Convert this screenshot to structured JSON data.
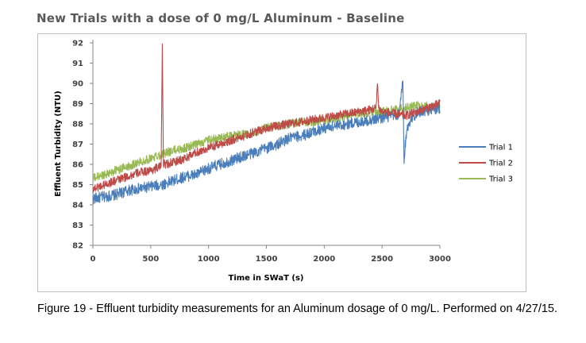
{
  "figure": {
    "caption": "Figure 19 - Effluent turbidity measurements for an Aluminum dosage of 0 mg/L. Performed on 4/27/15."
  },
  "chart_data": {
    "type": "line",
    "title": "New Trials with a dose of 0 mg/L Aluminum - Baseline",
    "xlabel": "Time in SWaT (s)",
    "ylabel": "Effluent Turbidity (NTU)",
    "xlim": [
      0,
      3000
    ],
    "ylim": [
      82,
      92
    ],
    "xticks": [
      0,
      500,
      1000,
      1500,
      2000,
      2500,
      3000
    ],
    "yticks": [
      82,
      83,
      84,
      85,
      86,
      87,
      88,
      89,
      90,
      91,
      92
    ],
    "grid": false,
    "legend_position": "right",
    "series": [
      {
        "name": "Trial 1",
        "color": "#4a7ebb",
        "x": [
          0,
          100,
          200,
          300,
          400,
          500,
          600,
          700,
          800,
          900,
          1000,
          1100,
          1200,
          1300,
          1400,
          1500,
          1600,
          1700,
          1800,
          1900,
          2000,
          2100,
          2200,
          2300,
          2400,
          2500,
          2600,
          2650,
          2680,
          2690,
          2700,
          2720,
          2750,
          2800,
          2900,
          3000
        ],
        "values": [
          84.3,
          84.4,
          84.5,
          84.7,
          84.8,
          84.9,
          85.0,
          85.2,
          85.4,
          85.5,
          85.8,
          86.0,
          86.2,
          86.4,
          86.6,
          86.8,
          87.0,
          87.3,
          87.4,
          87.6,
          87.8,
          87.9,
          88.0,
          88.1,
          88.2,
          88.3,
          88.4,
          88.5,
          90.2,
          86.0,
          87.0,
          87.8,
          88.3,
          88.5,
          88.7,
          88.8
        ]
      },
      {
        "name": "Trial 2",
        "color": "#be4b48",
        "x": [
          0,
          100,
          200,
          300,
          400,
          500,
          590,
          600,
          610,
          700,
          800,
          900,
          1000,
          1100,
          1200,
          1300,
          1400,
          1500,
          1600,
          1700,
          1800,
          1900,
          2000,
          2100,
          2200,
          2300,
          2400,
          2450,
          2460,
          2470,
          2500,
          2600,
          2700,
          2800,
          2900,
          3000
        ],
        "values": [
          84.8,
          85.0,
          85.2,
          85.4,
          85.6,
          85.7,
          85.9,
          92.0,
          86.0,
          86.1,
          86.3,
          86.6,
          86.8,
          87.0,
          87.2,
          87.4,
          87.6,
          87.8,
          87.9,
          88.0,
          88.1,
          88.2,
          88.3,
          88.4,
          88.5,
          88.6,
          88.7,
          88.8,
          90.2,
          88.8,
          88.6,
          88.5,
          88.4,
          88.6,
          88.8,
          89.0
        ]
      },
      {
        "name": "Trial 3",
        "color": "#98b954",
        "x": [
          0,
          100,
          200,
          300,
          400,
          500,
          600,
          700,
          800,
          900,
          1000,
          1100,
          1200,
          1300,
          1400,
          1500,
          1600,
          1700,
          1800,
          1900,
          2000,
          2100,
          2200,
          2300,
          2400,
          2500,
          2600,
          2700,
          2800,
          2900,
          3000
        ],
        "values": [
          85.3,
          85.5,
          85.7,
          85.9,
          86.1,
          86.3,
          86.5,
          86.7,
          86.8,
          87.0,
          87.2,
          87.3,
          87.4,
          87.5,
          87.6,
          87.8,
          87.9,
          88.0,
          88.1,
          88.1,
          88.2,
          88.3,
          88.4,
          88.5,
          88.6,
          88.6,
          88.7,
          88.8,
          88.9,
          88.9,
          88.8
        ]
      }
    ]
  }
}
